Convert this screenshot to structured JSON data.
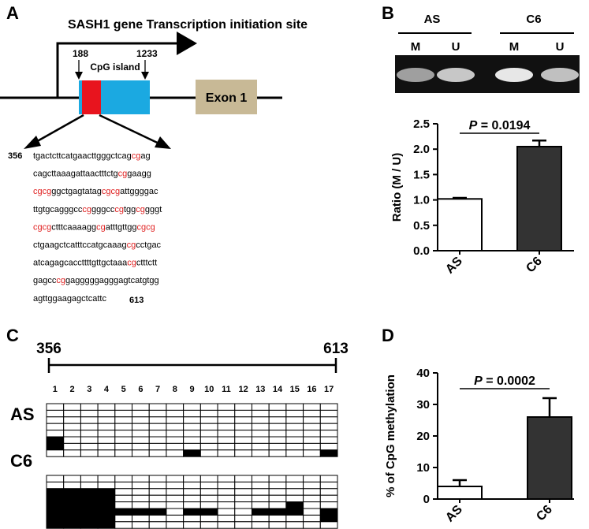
{
  "colors": {
    "cpg_island_fill": "#1ba9e1",
    "cpg_highlight": "#e8141e",
    "exon_fill": "#c8b996",
    "bar_dark": "#333333",
    "cg_text": "#e02020",
    "gel_background": "#111111"
  },
  "panel_a": {
    "label": "A",
    "title": "SASH1 gene Transcription initiation site",
    "pos_start": "188",
    "pos_end": "1233",
    "island_label": "CpG island",
    "exon_label": "Exon 1",
    "seq_start": "356",
    "seq_end": "613",
    "sequence_lines": [
      "tgactcttcatgaacttgggctcagcgag",
      "cagcttaaagattaactttctgcggaagg",
      "cgcgggctgagtatagcgcgattggggac",
      "ttgtgcagggcccggggcccgtggcggggt",
      "cgcgctttcaaaaggcgatttgttggcgcg",
      "ctgaagctcatttccatgcaaagcgcctgac",
      "atcagagcaccttttgttgctaaacgctttctt",
      "gagcccggagggggagggagtcatgtgg",
      "agttggaagagctcattc"
    ]
  },
  "panel_b": {
    "label": "B",
    "gel": {
      "groups": [
        "AS",
        "C6"
      ],
      "lanes": [
        "M",
        "U",
        "M",
        "U"
      ],
      "band_intensity": [
        0.45,
        0.75,
        1.0,
        0.7
      ]
    },
    "p_text": "= 0.0194"
  },
  "panel_c": {
    "label": "C",
    "start": "356",
    "end": "613",
    "site_numbers": [
      "1",
      "2",
      "3",
      "4",
      "5",
      "6",
      "7",
      "8",
      "9",
      "10",
      "11",
      "12",
      "13",
      "14",
      "15",
      "16",
      "17"
    ],
    "as_label": "AS",
    "c6_label": "C6",
    "as_methylated": [
      [
        5,
        0
      ],
      [
        6,
        0
      ],
      [
        7,
        8
      ],
      [
        7,
        16
      ]
    ],
    "c6_methylated": [
      [
        2,
        0
      ],
      [
        2,
        1
      ],
      [
        2,
        2
      ],
      [
        2,
        3
      ],
      [
        3,
        0
      ],
      [
        3,
        1
      ],
      [
        3,
        2
      ],
      [
        3,
        3
      ],
      [
        4,
        0
      ],
      [
        4,
        1
      ],
      [
        4,
        2
      ],
      [
        4,
        3
      ],
      [
        4,
        14
      ],
      [
        5,
        0
      ],
      [
        5,
        1
      ],
      [
        5,
        2
      ],
      [
        5,
        3
      ],
      [
        5,
        4
      ],
      [
        5,
        5
      ],
      [
        5,
        6
      ],
      [
        5,
        8
      ],
      [
        5,
        9
      ],
      [
        5,
        12
      ],
      [
        5,
        13
      ],
      [
        5,
        14
      ],
      [
        5,
        16
      ],
      [
        6,
        0
      ],
      [
        6,
        1
      ],
      [
        6,
        2
      ],
      [
        6,
        3
      ],
      [
        6,
        16
      ],
      [
        7,
        0
      ],
      [
        7,
        1
      ],
      [
        7,
        2
      ],
      [
        7,
        3
      ]
    ]
  },
  "panel_d": {
    "label": "D",
    "p_text": "= 0.0002"
  },
  "p_prefix": "P",
  "chart_data": [
    {
      "type": "bar",
      "panel": "B",
      "categories": [
        "AS",
        "C6"
      ],
      "values": [
        1.02,
        2.05
      ],
      "errors": [
        0.02,
        0.12
      ],
      "ylabel": "Ratio (M / U)",
      "ylim": [
        0,
        2.5
      ],
      "yticks": [
        "0.0",
        "0.5",
        "1.0",
        "1.5",
        "2.0",
        "2.5"
      ],
      "annotation": "P = 0.0194"
    },
    {
      "type": "bar",
      "panel": "D",
      "categories": [
        "AS",
        "C6"
      ],
      "values": [
        4,
        26
      ],
      "errors": [
        2,
        6
      ],
      "ylabel": "% of CpG methylation",
      "ylim": [
        0,
        40
      ],
      "yticks": [
        "0",
        "10",
        "20",
        "30",
        "40"
      ],
      "annotation": "P = 0.0002"
    }
  ]
}
